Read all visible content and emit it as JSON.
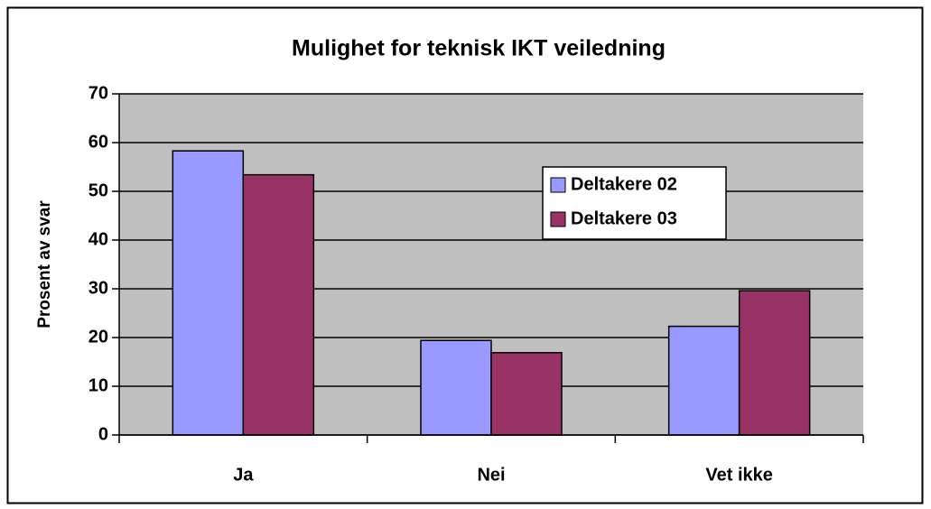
{
  "chart_data": {
    "type": "bar",
    "title": "Mulighet for teknisk IKT veiledning",
    "ylabel": "Prosent av svar",
    "categories": [
      "Ja",
      "Nei",
      "Vet ikke"
    ],
    "series": [
      {
        "name": "Deltakere 02",
        "color": "#9999ff",
        "values": [
          58.3,
          19.4,
          22.3
        ]
      },
      {
        "name": "Deltakere 03",
        "color": "#993366",
        "values": [
          53.4,
          16.9,
          29.6
        ]
      }
    ],
    "ylim": [
      0,
      70
    ],
    "yticks": [
      0,
      10,
      20,
      30,
      40,
      50,
      60,
      70
    ],
    "grid": true,
    "legend": "right",
    "plot_background": "#c0c0c0"
  }
}
